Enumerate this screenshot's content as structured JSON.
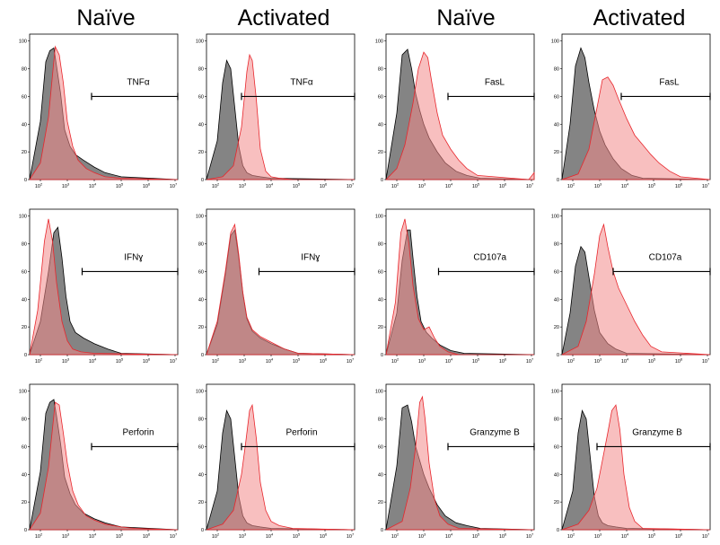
{
  "column_headers": [
    "Naïve",
    "Activated",
    "Naïve",
    "Activated"
  ],
  "axis": {
    "x_scale": "log",
    "x_min_exp": 1.6,
    "x_max_exp": 7.1,
    "x_tick_exps": [
      2,
      3,
      4,
      5,
      6,
      7
    ],
    "x_tick_labels": [
      "10",
      "10",
      "10",
      "10",
      "10",
      "10"
    ],
    "x_tick_sups": [
      "2",
      "3",
      "4",
      "5",
      "6",
      "7"
    ],
    "y_min": 0,
    "y_max": 105,
    "y_ticks": [
      0,
      20,
      40,
      60,
      80,
      100
    ],
    "y_tick_labels": [
      "0",
      "20",
      "40",
      "60",
      "80",
      "100"
    ]
  },
  "colors": {
    "control_fill": "#6f6f6f",
    "control_line": "#000000",
    "stained_fill": "#f28b8b",
    "stained_line": "#e8262c",
    "overlap_fill": "#8a4a4a"
  },
  "chart_data": [
    {
      "type": "area",
      "column": "Naïve",
      "marker": "TNFα",
      "gate": {
        "from_exp": 3.9,
        "to_exp": 7.1,
        "y": 60
      },
      "series": [
        {
          "role": "control",
          "x_exp": [
            1.6,
            2.0,
            2.2,
            2.35,
            2.5,
            2.6,
            2.75,
            2.9,
            3.1,
            3.3,
            3.6,
            4.0,
            4.4,
            5.0,
            7.1
          ],
          "values": [
            0,
            42,
            85,
            93,
            95,
            82,
            62,
            36,
            24,
            18,
            14,
            9,
            5,
            2,
            0
          ]
        },
        {
          "role": "stained",
          "x_exp": [
            1.6,
            2.0,
            2.3,
            2.55,
            2.7,
            2.85,
            3.0,
            3.2,
            3.4,
            3.7,
            4.0,
            4.4,
            5.0,
            7.1
          ],
          "values": [
            0,
            12,
            45,
            96,
            90,
            70,
            42,
            24,
            14,
            8,
            5,
            2,
            1,
            0
          ]
        }
      ]
    },
    {
      "type": "area",
      "column": "Activated",
      "marker": "TNFα",
      "gate": {
        "from_exp": 2.9,
        "to_exp": 7.1,
        "y": 60
      },
      "series": [
        {
          "role": "control",
          "x_exp": [
            1.6,
            2.0,
            2.2,
            2.35,
            2.5,
            2.65,
            2.8,
            2.95,
            3.1,
            3.3,
            3.6,
            4.0,
            7.1
          ],
          "values": [
            0,
            28,
            70,
            86,
            80,
            52,
            24,
            10,
            5,
            3,
            2,
            1,
            0
          ]
        },
        {
          "role": "stained",
          "x_exp": [
            1.6,
            2.2,
            2.6,
            2.9,
            3.1,
            3.2,
            3.3,
            3.45,
            3.6,
            3.8,
            4.0,
            4.3,
            4.8,
            7.1
          ],
          "values": [
            0,
            2,
            10,
            38,
            78,
            90,
            86,
            58,
            22,
            6,
            2,
            1,
            0,
            0
          ]
        }
      ]
    },
    {
      "type": "area",
      "column": "Naïve",
      "marker": "FasL",
      "gate": {
        "from_exp": 3.9,
        "to_exp": 7.1,
        "y": 60
      },
      "series": [
        {
          "role": "control",
          "x_exp": [
            1.6,
            2.0,
            2.2,
            2.4,
            2.55,
            2.7,
            2.85,
            3.0,
            3.2,
            3.5,
            3.8,
            4.2,
            4.6,
            5.1,
            7.1
          ],
          "values": [
            0,
            48,
            90,
            94,
            80,
            62,
            50,
            40,
            30,
            20,
            12,
            6,
            3,
            1,
            0
          ]
        },
        {
          "role": "stained",
          "x_exp": [
            1.6,
            2.0,
            2.3,
            2.6,
            2.8,
            3.0,
            3.15,
            3.3,
            3.5,
            3.7,
            4.0,
            4.3,
            4.6,
            5.0,
            6.9,
            7.1
          ],
          "values": [
            0,
            8,
            25,
            55,
            80,
            92,
            88,
            70,
            48,
            32,
            22,
            14,
            8,
            3,
            0,
            5
          ]
        }
      ]
    },
    {
      "type": "area",
      "column": "Activated",
      "marker": "FasL",
      "gate": {
        "from_exp": 3.8,
        "to_exp": 7.1,
        "y": 60
      },
      "series": [
        {
          "role": "control",
          "x_exp": [
            1.6,
            1.9,
            2.1,
            2.3,
            2.45,
            2.6,
            2.8,
            3.0,
            3.2,
            3.5,
            3.8,
            4.2,
            4.6,
            7.1
          ],
          "values": [
            0,
            40,
            82,
            95,
            88,
            70,
            50,
            35,
            25,
            15,
            8,
            3,
            1,
            0
          ]
        },
        {
          "role": "stained",
          "x_exp": [
            1.6,
            2.2,
            2.6,
            2.9,
            3.1,
            3.3,
            3.5,
            3.7,
            4.0,
            4.3,
            4.6,
            4.9,
            5.2,
            5.6,
            6.0,
            7.1
          ],
          "values": [
            0,
            4,
            22,
            52,
            72,
            74,
            68,
            58,
            44,
            32,
            25,
            18,
            12,
            6,
            2,
            0
          ]
        }
      ]
    },
    {
      "type": "area",
      "column": "Naïve",
      "marker": "IFNɣ",
      "gate": {
        "from_exp": 3.55,
        "to_exp": 7.1,
        "y": 60
      },
      "series": [
        {
          "role": "control",
          "x_exp": [
            1.6,
            2.0,
            2.3,
            2.5,
            2.65,
            2.8,
            2.95,
            3.1,
            3.3,
            3.6,
            4.0,
            4.5,
            5.0,
            7.1
          ],
          "values": [
            0,
            24,
            60,
            88,
            92,
            70,
            42,
            24,
            16,
            12,
            8,
            4,
            1,
            0
          ]
        },
        {
          "role": "stained",
          "x_exp": [
            1.6,
            1.9,
            2.15,
            2.3,
            2.45,
            2.6,
            2.8,
            3.0,
            3.2,
            3.5,
            4.0,
            7.1
          ],
          "values": [
            0,
            32,
            82,
            98,
            82,
            52,
            24,
            10,
            4,
            2,
            1,
            0
          ]
        }
      ]
    },
    {
      "type": "area",
      "column": "Activated",
      "marker": "IFNɣ",
      "gate": {
        "from_exp": 3.55,
        "to_exp": 7.1,
        "y": 60
      },
      "series": [
        {
          "role": "control",
          "x_exp": [
            1.6,
            2.0,
            2.3,
            2.5,
            2.65,
            2.8,
            2.95,
            3.1,
            3.3,
            3.6,
            4.0,
            4.5,
            5.0,
            7.1
          ],
          "values": [
            0,
            22,
            58,
            86,
            90,
            70,
            44,
            26,
            17,
            12,
            8,
            4,
            1,
            0
          ]
        },
        {
          "role": "stained",
          "x_exp": [
            1.6,
            2.0,
            2.3,
            2.5,
            2.65,
            2.8,
            2.95,
            3.1,
            3.3,
            3.6,
            4.0,
            4.5,
            5.0,
            7.1
          ],
          "values": [
            0,
            24,
            60,
            88,
            94,
            72,
            45,
            27,
            18,
            13,
            9,
            4,
            1,
            0
          ]
        }
      ]
    },
    {
      "type": "area",
      "column": "Naïve",
      "marker": "CD107a",
      "gate": {
        "from_exp": 3.55,
        "to_exp": 7.1,
        "y": 60
      },
      "series": [
        {
          "role": "control",
          "x_exp": [
            1.6,
            2.0,
            2.2,
            2.4,
            2.5,
            2.6,
            2.75,
            2.9,
            3.1,
            3.3,
            3.6,
            4.0,
            4.5,
            7.1
          ],
          "values": [
            0,
            30,
            68,
            90,
            90,
            70,
            42,
            24,
            16,
            12,
            7,
            3,
            1,
            0
          ]
        },
        {
          "role": "stained",
          "x_exp": [
            1.6,
            1.95,
            2.15,
            2.3,
            2.45,
            2.6,
            2.8,
            3.0,
            3.2,
            3.4,
            3.6,
            3.9,
            4.3,
            7.1
          ],
          "values": [
            0,
            38,
            88,
            98,
            80,
            50,
            26,
            18,
            20,
            12,
            6,
            2,
            0,
            0
          ]
        }
      ]
    },
    {
      "type": "area",
      "column": "Activated",
      "marker": "CD107a",
      "gate": {
        "from_exp": 3.5,
        "to_exp": 7.1,
        "y": 60
      },
      "series": [
        {
          "role": "control",
          "x_exp": [
            1.6,
            1.9,
            2.1,
            2.3,
            2.45,
            2.6,
            2.8,
            3.0,
            3.3,
            3.6,
            4.0,
            7.1
          ],
          "values": [
            0,
            30,
            64,
            78,
            74,
            56,
            32,
            16,
            8,
            4,
            1,
            0
          ]
        },
        {
          "role": "stained",
          "x_exp": [
            1.6,
            2.2,
            2.5,
            2.8,
            3.0,
            3.15,
            3.3,
            3.5,
            3.7,
            4.0,
            4.3,
            4.6,
            4.9,
            5.3,
            7.1
          ],
          "values": [
            0,
            6,
            24,
            58,
            86,
            94,
            78,
            60,
            48,
            36,
            24,
            14,
            6,
            2,
            0
          ]
        }
      ]
    },
    {
      "type": "area",
      "column": "Naïve",
      "marker": "Perforin",
      "gate": {
        "from_exp": 3.9,
        "to_exp": 7.1,
        "y": 60
      },
      "series": [
        {
          "role": "control",
          "x_exp": [
            1.6,
            2.0,
            2.2,
            2.35,
            2.5,
            2.6,
            2.75,
            2.9,
            3.1,
            3.3,
            3.6,
            4.0,
            4.4,
            5.0,
            7.1
          ],
          "values": [
            0,
            42,
            84,
            92,
            94,
            82,
            62,
            38,
            26,
            18,
            12,
            8,
            5,
            2,
            0
          ]
        },
        {
          "role": "stained",
          "x_exp": [
            1.6,
            2.0,
            2.3,
            2.55,
            2.7,
            2.85,
            3.0,
            3.2,
            3.4,
            3.7,
            4.0,
            4.4,
            5.0,
            5.5,
            7.1
          ],
          "values": [
            0,
            12,
            45,
            92,
            90,
            70,
            48,
            28,
            18,
            10,
            7,
            4,
            2,
            1,
            0
          ]
        }
      ]
    },
    {
      "type": "area",
      "column": "Activated",
      "marker": "Perforin",
      "gate": {
        "from_exp": 2.9,
        "to_exp": 7.1,
        "y": 60
      },
      "series": [
        {
          "role": "control",
          "x_exp": [
            1.6,
            2.0,
            2.2,
            2.35,
            2.5,
            2.65,
            2.8,
            2.95,
            3.1,
            3.3,
            3.6,
            4.0,
            7.1
          ],
          "values": [
            0,
            28,
            70,
            86,
            80,
            52,
            24,
            10,
            5,
            3,
            2,
            1,
            0
          ]
        },
        {
          "role": "stained",
          "x_exp": [
            1.6,
            2.2,
            2.6,
            2.9,
            3.05,
            3.2,
            3.3,
            3.45,
            3.6,
            3.8,
            4.0,
            4.3,
            4.8,
            7.1
          ],
          "values": [
            0,
            4,
            14,
            40,
            62,
            86,
            90,
            66,
            34,
            14,
            6,
            3,
            1,
            0
          ]
        }
      ]
    },
    {
      "type": "area",
      "column": "Naïve",
      "marker": "Granzyme B",
      "gate": {
        "from_exp": 3.9,
        "to_exp": 7.1,
        "y": 60
      },
      "series": [
        {
          "role": "control",
          "x_exp": [
            1.6,
            2.0,
            2.2,
            2.4,
            2.55,
            2.7,
            2.85,
            3.0,
            3.2,
            3.5,
            3.8,
            4.2,
            4.6,
            5.1,
            7.1
          ],
          "values": [
            0,
            46,
            88,
            90,
            78,
            60,
            50,
            40,
            30,
            18,
            10,
            5,
            3,
            1,
            0
          ]
        },
        {
          "role": "stained",
          "x_exp": [
            1.6,
            2.2,
            2.5,
            2.7,
            2.85,
            2.95,
            3.05,
            3.2,
            3.4,
            3.6,
            3.9,
            4.3,
            7.1
          ],
          "values": [
            0,
            6,
            30,
            60,
            92,
            96,
            80,
            48,
            22,
            10,
            4,
            1,
            0
          ]
        }
      ]
    },
    {
      "type": "area",
      "column": "Activated",
      "marker": "Granzyme B",
      "gate": {
        "from_exp": 2.9,
        "to_exp": 7.1,
        "y": 60
      },
      "series": [
        {
          "role": "control",
          "x_exp": [
            1.6,
            2.0,
            2.2,
            2.35,
            2.5,
            2.65,
            2.8,
            2.95,
            3.1,
            3.3,
            3.6,
            4.0,
            7.1
          ],
          "values": [
            0,
            28,
            70,
            86,
            80,
            52,
            24,
            10,
            5,
            3,
            2,
            1,
            0
          ]
        },
        {
          "role": "stained",
          "x_exp": [
            1.6,
            2.2,
            2.6,
            2.9,
            3.1,
            3.3,
            3.45,
            3.6,
            3.75,
            3.9,
            4.1,
            4.3,
            4.6,
            7.1
          ],
          "values": [
            0,
            4,
            14,
            30,
            50,
            70,
            86,
            90,
            72,
            40,
            16,
            6,
            1,
            0
          ]
        }
      ]
    }
  ]
}
